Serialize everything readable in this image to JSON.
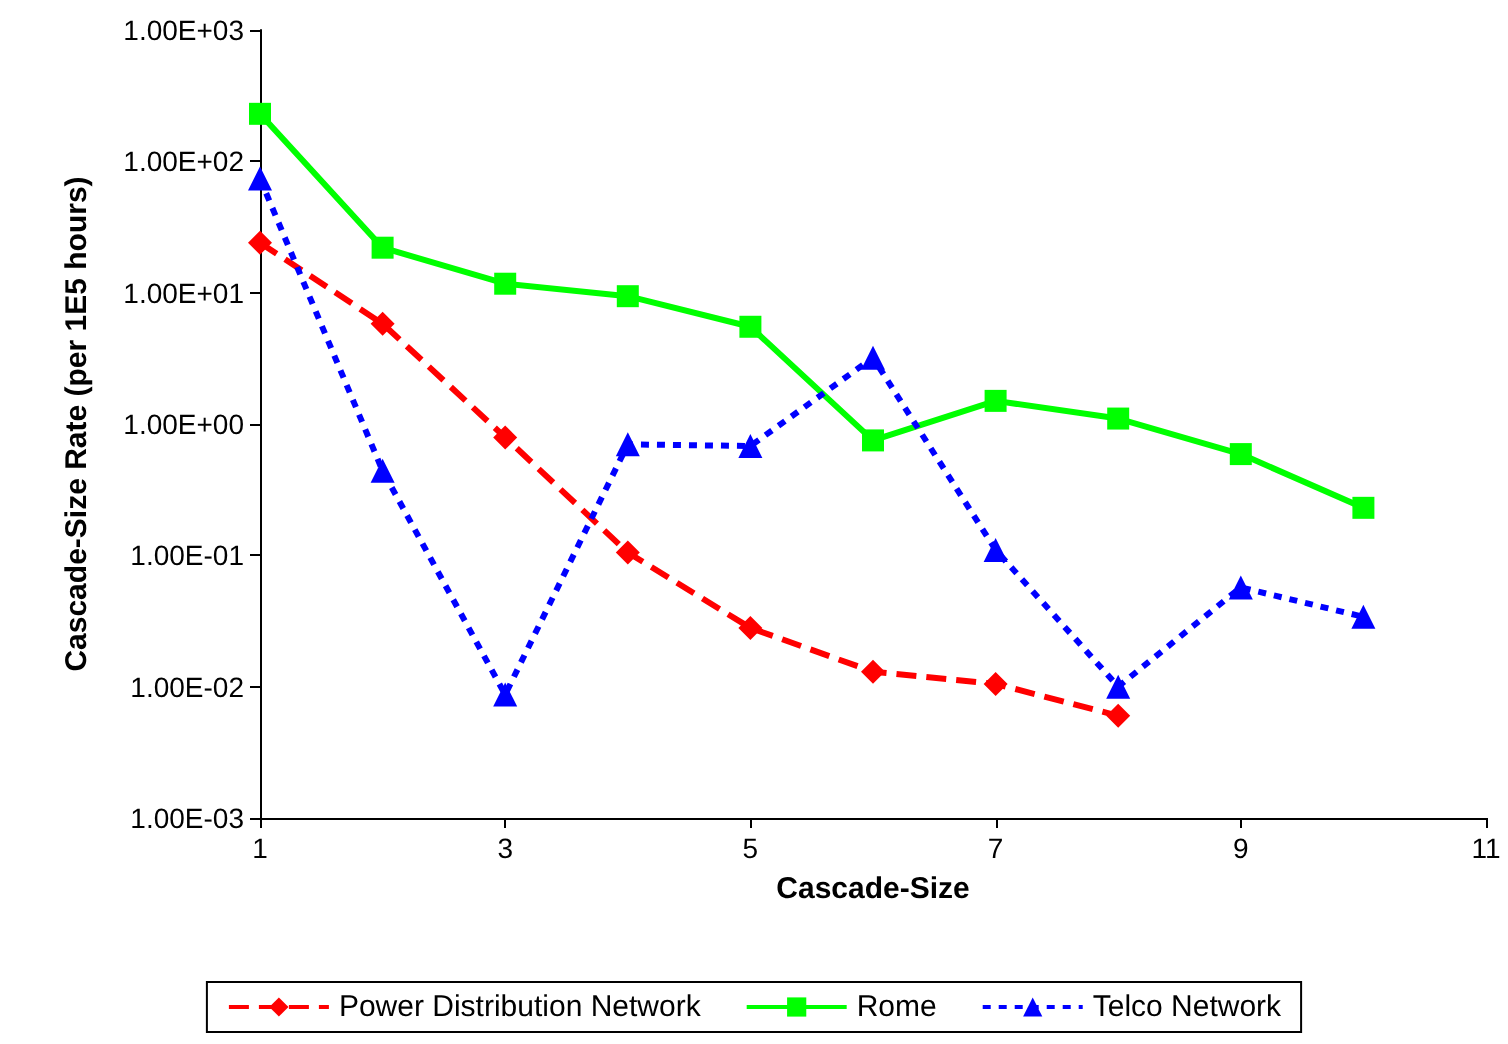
{
  "chart_data": {
    "type": "line",
    "xlabel": "Cascade-Size",
    "ylabel": "Cascade-Size Rate (per 1E5 hours)",
    "log": "y",
    "grid": false,
    "legend": "bottom",
    "xlim": [
      1,
      11
    ],
    "xticks": [
      1,
      3,
      5,
      7,
      9,
      11
    ],
    "ylim": [
      0.001,
      1000
    ],
    "yticks": [
      {
        "value": 0.001,
        "label": "1.00E-03"
      },
      {
        "value": 0.01,
        "label": "1.00E-02"
      },
      {
        "value": 0.1,
        "label": "1.00E-01"
      },
      {
        "value": 1,
        "label": "1.00E+00"
      },
      {
        "value": 10,
        "label": "1.00E+01"
      },
      {
        "value": 100,
        "label": "1.00E+02"
      },
      {
        "value": 1000,
        "label": "1.00E+03"
      }
    ],
    "x": [
      1,
      2,
      3,
      4,
      5,
      6,
      7,
      8,
      9,
      10
    ],
    "series": [
      {
        "name": "Power Distribution Network",
        "color": "#ff0000",
        "marker": "diamond",
        "line_style": "dashed",
        "x": [
          1,
          2,
          3,
          4,
          5,
          6,
          7,
          8
        ],
        "values": [
          24,
          5.8,
          0.79,
          0.105,
          0.028,
          0.013,
          0.0105,
          0.006
        ]
      },
      {
        "name": "Rome",
        "color": "#00ff00",
        "marker": "square",
        "line_style": "solid",
        "values": [
          230,
          22,
          11.7,
          9.4,
          5.5,
          0.75,
          1.5,
          1.1,
          0.59,
          0.23
        ]
      },
      {
        "name": "Telco Network",
        "color": "#0000ff",
        "marker": "triangle",
        "line_style": "dotted",
        "values": [
          74,
          0.44,
          0.0087,
          0.7,
          0.68,
          3.2,
          0.11,
          0.01,
          0.057,
          0.034
        ]
      }
    ]
  }
}
